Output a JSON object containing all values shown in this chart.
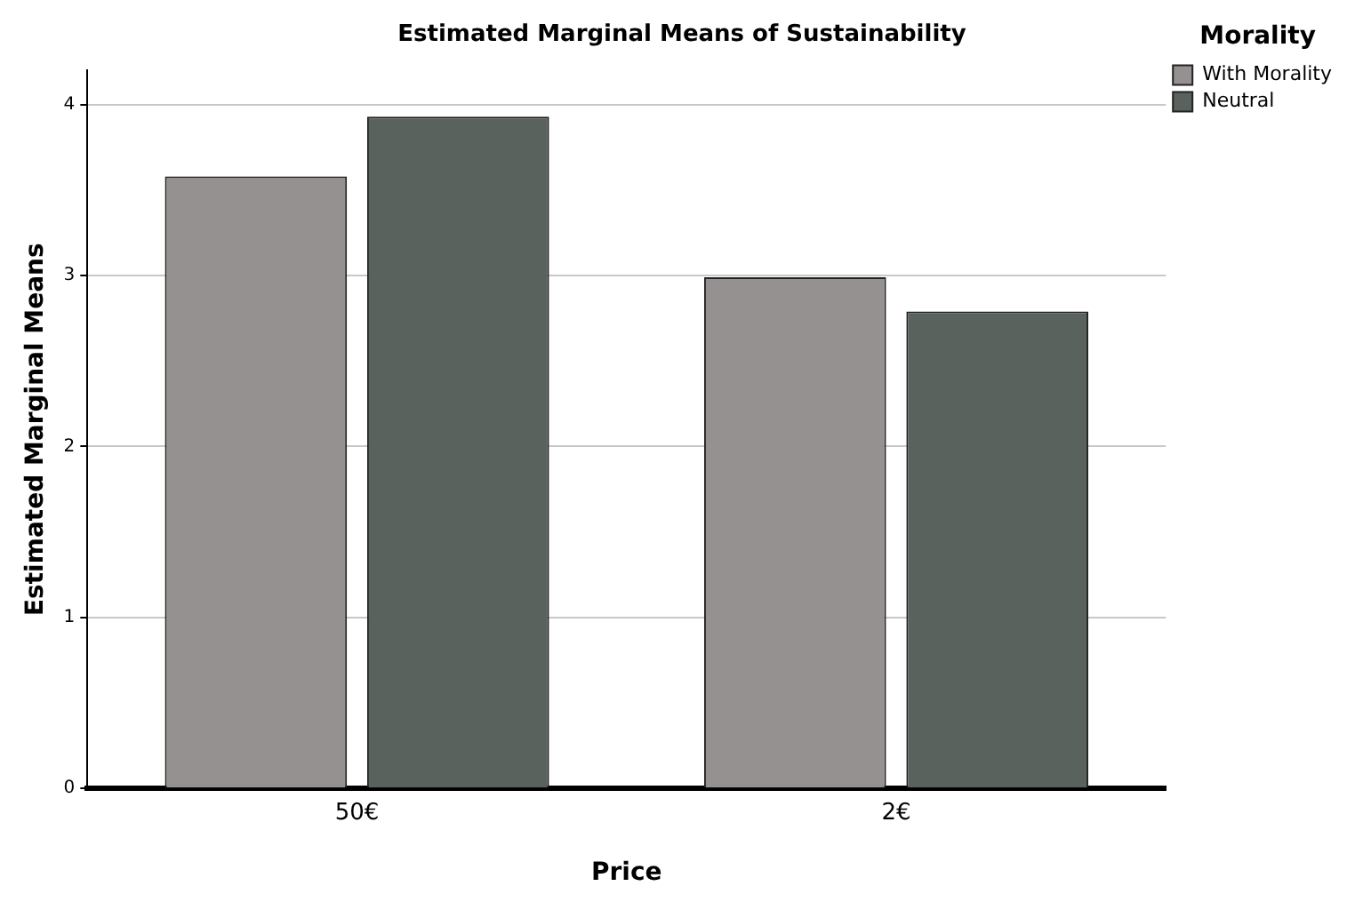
{
  "chart_data": {
    "type": "bar",
    "title": "Estimated Marginal Means of Sustainability",
    "xlabel": "Price",
    "ylabel": "Estimated Marginal Means",
    "legend_title": "Morality",
    "categories": [
      "50€",
      "2€"
    ],
    "series": [
      {
        "name": "With Morality",
        "color": "#959190",
        "values": [
          3.58,
          2.99
        ]
      },
      {
        "name": "Neutral",
        "color": "#5a625d",
        "values": [
          3.93,
          2.79
        ]
      }
    ],
    "ylim": [
      0,
      4.2
    ],
    "yticks": [
      0,
      1,
      2,
      3,
      4
    ],
    "grid": "y",
    "legend": "top right"
  }
}
